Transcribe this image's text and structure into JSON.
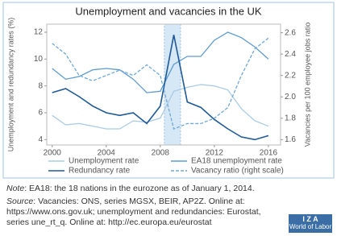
{
  "chart_data": {
    "type": "line",
    "title": "Unemployment and vacancies in the UK",
    "y_label": "Unemployment and redundancy rates (%)",
    "y2_label": "Vacancies per 100 employee jobs ratio",
    "x": [
      2000,
      2001,
      2002,
      2003,
      2004,
      2005,
      2006,
      2007,
      2008,
      2009,
      2010,
      2011,
      2012,
      2013,
      2014,
      2015,
      2016
    ],
    "series": [
      {
        "name": "Unemployment rate",
        "color": "#a9cbe6",
        "values": [
          5.8,
          5.1,
          5.2,
          5.0,
          4.8,
          4.8,
          5.4,
          5.3,
          5.6,
          7.6,
          7.9,
          8.1,
          8.0,
          7.7,
          6.3,
          5.4,
          5.0
        ]
      },
      {
        "name": "EA18 unemployment rate",
        "color": "#5e9bd1",
        "values": [
          9.3,
          8.5,
          8.7,
          9.2,
          9.3,
          9.2,
          8.5,
          7.5,
          7.6,
          9.6,
          10.2,
          10.2,
          11.4,
          12.0,
          11.6,
          10.9,
          10.0
        ]
      },
      {
        "name": "Redundancy rate",
        "color": "#1f5a96",
        "values": [
          7.5,
          7.8,
          7.2,
          6.5,
          6.0,
          5.8,
          6.0,
          5.2,
          6.5,
          11.8,
          6.8,
          6.4,
          5.5,
          4.8,
          4.2,
          4.0,
          4.3
        ]
      },
      {
        "name": "Vacancy ratio (right scale)",
        "color": "#6fa8d6",
        "axis": "y2",
        "dashed": true,
        "values": [
          2.5,
          2.4,
          2.2,
          2.15,
          2.2,
          2.25,
          2.2,
          2.3,
          2.2,
          1.7,
          1.75,
          1.75,
          1.8,
          1.9,
          2.2,
          2.45,
          2.55
        ]
      }
    ],
    "recession_band": [
      2008.3,
      2009.5
    ],
    "xlim": [
      1999.6,
      2016.9
    ],
    "xticks": [
      2000,
      2004,
      2008,
      2012,
      2016
    ],
    "ylim": [
      3.6,
      12.6
    ],
    "yticks": [
      4,
      6,
      8,
      10,
      12
    ],
    "y2lim": [
      1.55,
      2.68
    ],
    "y2ticks": [
      1.6,
      1.8,
      {
        "value": 2,
        "label": "2.0"
      },
      2.2,
      2.4,
      2.6
    ]
  },
  "note": {
    "label": "Note",
    "text": ": EA18: the 18 nations in the eurozone as of January 1, 2014."
  },
  "source": {
    "label": "Source",
    "text": ": Vacancies: ONS, series MGSX, BEIR, AP2Z. Online at: https://www.ons.gov.uk; unemployment and redundancies: Eurostat, series une_rt_q. Online at: http://ec.europa.eu/eurostat"
  },
  "logo": {
    "name": "I Z A",
    "tagline": "World of Labor"
  }
}
